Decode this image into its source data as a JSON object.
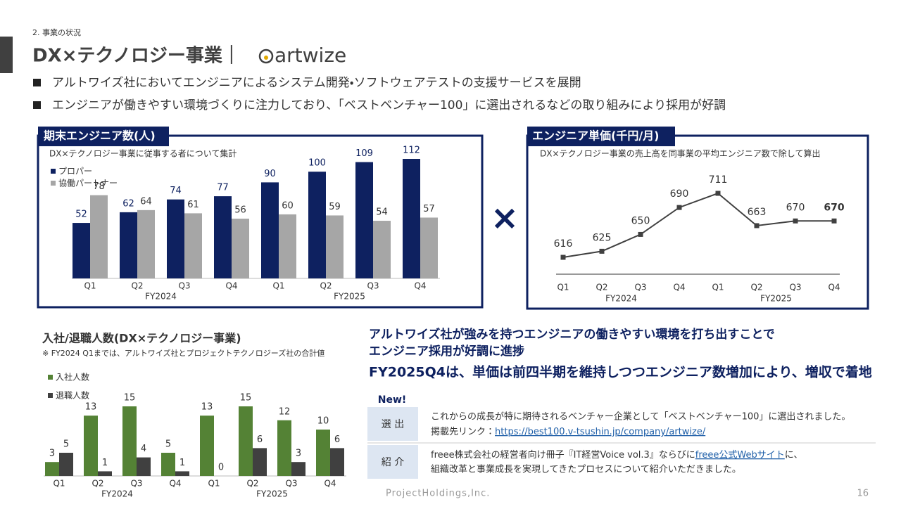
{
  "header": {
    "section": "2. 事業の状況",
    "title": "DX×テクノロジー事業｜",
    "logo": "artwize"
  },
  "bullets": [
    "アルトワイズ社においてエンジニアによるシステム開発・ソフトウェアテストの支援サービスを展開",
    "エンジニアが働きやすい環境づくりに注力しており、「ベストベンチャー100」に選出されるなどの取り組みにより採用が好調"
  ],
  "chart_data": [
    {
      "type": "bar",
      "title": "期末エンジニア数(人)",
      "subtitle": "DX×テクノロジー事業に従事する者について集計",
      "categories": [
        "Q1",
        "Q2",
        "Q3",
        "Q4",
        "Q1",
        "Q2",
        "Q3",
        "Q4"
      ],
      "groups": [
        "FY2024",
        "FY2025"
      ],
      "series": [
        {
          "name": "プロパー",
          "color": "#0e2160",
          "values": [
            52,
            62,
            74,
            77,
            90,
            100,
            109,
            112
          ]
        },
        {
          "name": "協働パートナー",
          "color": "#a6a6a6",
          "values": [
            78,
            64,
            61,
            56,
            60,
            59,
            54,
            57
          ]
        }
      ]
    },
    {
      "type": "line",
      "title": "エンジニア単価(千円/月)",
      "subtitle": "DX×テクノロジー事業の売上高を同事業の平均エンジニア数で除して算出",
      "categories": [
        "Q1",
        "Q2",
        "Q3",
        "Q4",
        "Q1",
        "Q2",
        "Q3",
        "Q4"
      ],
      "groups": [
        "FY2024",
        "FY2025"
      ],
      "color": "#404040",
      "values": [
        616,
        625,
        650,
        690,
        711,
        663,
        670,
        670
      ]
    },
    {
      "type": "bar",
      "title": "入社/退職人数(DX×テクノロジー事業)",
      "subtitle": "※ FY2024 Q1までは、アルトワイズ社とプロジェクトテクノロジーズ社の合計値",
      "categories": [
        "Q1",
        "Q2",
        "Q3",
        "Q4",
        "Q1",
        "Q2",
        "Q3",
        "Q4"
      ],
      "groups": [
        "FY2024",
        "FY2025"
      ],
      "series": [
        {
          "name": "入社人数",
          "color": "#548235",
          "values": [
            3,
            13,
            15,
            5,
            13,
            15,
            12,
            10
          ]
        },
        {
          "name": "退職人数",
          "color": "#404040",
          "values": [
            5,
            1,
            4,
            1,
            0,
            6,
            3,
            6
          ]
        }
      ]
    }
  ],
  "operator": "×",
  "message": {
    "lines": [
      "アルトワイズ社が強みを持つエンジニアの働きやすい環境を打ち出すことで",
      "エンジニア採用が好調に進捗"
    ],
    "headline": "FY2025Q4は、単価は前四半期を維持しつつエンジニア数増加により、増収で着地"
  },
  "news": {
    "badge": "New!",
    "rows": [
      {
        "label": "選 出",
        "parts": [
          "これからの成長が特に期待されるベンチャー企業として「ベストベンチャー100」に選出されました。",
          "掲載先リンク：",
          "https://best100.v-tsushin.jp/company/artwize/"
        ]
      },
      {
        "label": "紹 介",
        "parts": [
          "freee株式会社の経営者向け冊子『IT経営Voice vol.3』ならびに",
          "freee公式Webサイト",
          "に、",
          "組織改革と事業成長を実現してきたプロセスについて紹介いただきました。"
        ]
      }
    ]
  },
  "footer": {
    "company": "ProjectHoldings,Inc.",
    "page": "16"
  }
}
